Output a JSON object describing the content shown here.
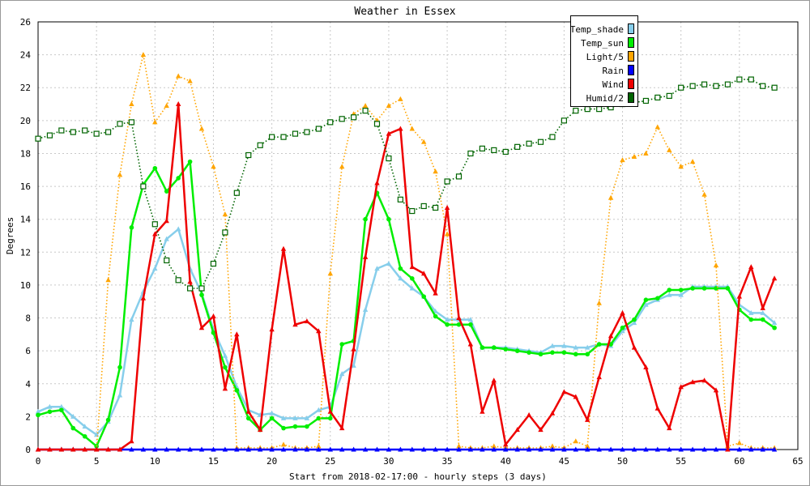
{
  "chart_data": {
    "type": "line",
    "title": "Weather in Essex",
    "xlabel": "Start from 2018-02-17:00 - hourly steps (3 days)",
    "ylabel": "Degrees",
    "xlim": [
      0,
      65
    ],
    "ylim": [
      0,
      26
    ],
    "xticks": [
      0,
      5,
      10,
      15,
      20,
      25,
      30,
      35,
      40,
      45,
      50,
      55,
      60,
      65
    ],
    "yticks": [
      0,
      2,
      4,
      6,
      8,
      10,
      12,
      14,
      16,
      18,
      20,
      22,
      24,
      26
    ],
    "grid": true,
    "legend_position": "top-right",
    "series": [
      {
        "name": "Temp_shade",
        "color": "#87ceeb",
        "marker": "triangle",
        "style": "solid",
        "values": [
          2.3,
          2.6,
          2.6,
          2.0,
          1.4,
          0.9,
          1.7,
          3.3,
          7.9,
          9.6,
          11.0,
          12.8,
          13.4,
          11.0,
          9.5,
          7.3,
          5.7,
          3.8,
          2.4,
          2.1,
          2.2,
          1.9,
          1.9,
          1.9,
          2.4,
          2.6,
          4.6,
          5.1,
          8.5,
          11.0,
          11.3,
          10.4,
          9.8,
          9.3,
          8.4,
          7.9,
          7.9,
          7.9,
          6.2,
          6.2,
          6.2,
          6.1,
          6.0,
          5.9,
          6.3,
          6.3,
          6.2,
          6.2,
          6.4,
          6.3,
          7.2,
          7.7,
          8.8,
          9.1,
          9.4,
          9.4,
          9.9,
          9.9,
          9.9,
          9.9,
          8.8,
          8.3,
          8.3,
          7.7
        ]
      },
      {
        "name": "Temp_sun",
        "color": "#00ee00",
        "marker": "circle",
        "style": "solid",
        "values": [
          2.1,
          2.3,
          2.4,
          1.3,
          0.8,
          0.2,
          1.8,
          5.0,
          13.5,
          16.1,
          17.1,
          15.7,
          16.5,
          17.5,
          9.4,
          7.1,
          5.0,
          3.6,
          1.9,
          1.2,
          1.9,
          1.3,
          1.4,
          1.4,
          1.9,
          1.9,
          6.4,
          6.6,
          14.0,
          15.6,
          14.0,
          11.0,
          10.4,
          9.3,
          8.1,
          7.6,
          7.6,
          7.6,
          6.2,
          6.2,
          6.1,
          6.0,
          5.9,
          5.8,
          5.9,
          5.9,
          5.8,
          5.8,
          6.4,
          6.4,
          7.4,
          7.9,
          9.1,
          9.2,
          9.7,
          9.7,
          9.8,
          9.8,
          9.8,
          9.8,
          8.5,
          7.9,
          7.9,
          7.4
        ]
      },
      {
        "name": "Light/5",
        "color": "#ffa500",
        "marker": "triangle",
        "style": "dotted",
        "values": [
          0,
          0,
          0,
          0,
          0,
          0,
          10.3,
          16.7,
          21.0,
          24.0,
          19.9,
          20.9,
          22.7,
          22.4,
          19.5,
          17.2,
          14.3,
          0.1,
          0.1,
          0.1,
          0.1,
          0.3,
          0.1,
          0.1,
          0.2,
          10.7,
          17.2,
          20.4,
          20.9,
          20.0,
          20.9,
          21.3,
          19.5,
          18.7,
          16.9,
          13.1,
          0.2,
          0.1,
          0.1,
          0.2,
          0.1,
          0.1,
          0.1,
          0.1,
          0.2,
          0.1,
          0.5,
          0.2,
          8.9,
          15.3,
          17.6,
          17.8,
          18.0,
          19.6,
          18.2,
          17.2,
          17.5,
          15.5,
          11.2,
          0.2,
          0.4,
          0.1,
          0.1,
          0.1
        ]
      },
      {
        "name": "Rain",
        "color": "#0000ff",
        "marker": "triangle",
        "style": "solid",
        "values": [
          0,
          0,
          0,
          0,
          0,
          0,
          0,
          0,
          0,
          0,
          0,
          0,
          0,
          0,
          0,
          0,
          0,
          0,
          0,
          0,
          0,
          0,
          0,
          0,
          0,
          0,
          0,
          0,
          0,
          0,
          0,
          0,
          0,
          0,
          0,
          0,
          0,
          0,
          0,
          0,
          0,
          0,
          0,
          0,
          0,
          0,
          0,
          0,
          0,
          0,
          0,
          0,
          0,
          0,
          0,
          0,
          0,
          0,
          0,
          0,
          0,
          0,
          0,
          0
        ]
      },
      {
        "name": "Wind",
        "color": "#ee0000",
        "marker": "triangle",
        "style": "solid",
        "values": [
          0,
          0,
          0,
          0,
          0,
          0,
          0,
          0,
          0.5,
          9.2,
          13.1,
          13.9,
          21.0,
          10.2,
          7.4,
          8.1,
          3.7,
          7.0,
          2.3,
          1.2,
          7.3,
          12.2,
          7.6,
          7.8,
          7.2,
          2.3,
          1.3,
          6.1,
          11.7,
          16.2,
          19.2,
          19.5,
          11.1,
          10.7,
          9.5,
          14.7,
          8.0,
          6.4,
          2.3,
          4.2,
          0.3,
          1.2,
          2.1,
          1.2,
          2.2,
          3.5,
          3.2,
          1.8,
          4.4,
          6.9,
          8.3,
          6.2,
          5.0,
          2.5,
          1.3,
          3.8,
          4.1,
          4.2,
          3.6,
          0,
          9.3,
          11.1,
          8.6,
          10.4
        ]
      },
      {
        "name": "Humid/2",
        "color": "#006400",
        "marker": "square",
        "style": "dotted",
        "values": [
          18.9,
          19.1,
          19.4,
          19.3,
          19.4,
          19.2,
          19.3,
          19.8,
          19.9,
          16.0,
          13.7,
          11.5,
          10.3,
          9.8,
          9.8,
          11.3,
          13.2,
          15.6,
          17.9,
          18.5,
          19.0,
          19.0,
          19.2,
          19.3,
          19.5,
          19.9,
          20.1,
          20.2,
          20.6,
          19.8,
          17.7,
          15.2,
          14.5,
          14.8,
          14.7,
          16.3,
          16.6,
          18.0,
          18.3,
          18.2,
          18.1,
          18.4,
          18.6,
          18.7,
          19.0,
          20.0,
          20.6,
          20.7,
          20.7,
          20.8,
          21.0,
          21.1,
          21.2,
          21.4,
          21.5,
          22.0,
          22.1,
          22.2,
          22.1,
          22.2,
          22.5,
          22.5,
          22.1,
          22.0
        ]
      }
    ]
  }
}
